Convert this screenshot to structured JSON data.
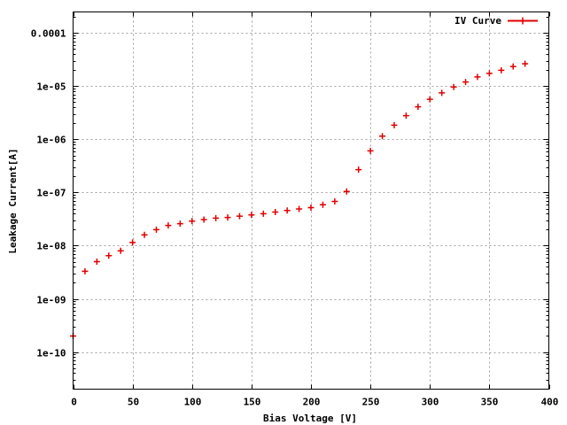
{
  "chart_data": {
    "type": "scatter",
    "xlabel": "Bias Voltage [V]",
    "ylabel": "Leakage Current[A]",
    "xlim": [
      0,
      400
    ],
    "ylim": [
      2e-11,
      0.00025
    ],
    "y_scale": "log",
    "x_ticks": [
      0,
      50,
      100,
      150,
      200,
      250,
      300,
      350,
      400
    ],
    "x_tick_labels": [
      "0",
      "50",
      "100",
      "150",
      "200",
      "250",
      "300",
      "350",
      "400"
    ],
    "y_ticks": [
      1e-10,
      1e-09,
      1e-08,
      1e-07,
      1e-06,
      1e-05,
      0.0001
    ],
    "y_tick_labels": [
      "1e-10",
      "1e-09",
      "1e-08",
      "1e-07",
      "1e-06",
      "1e-05",
      "0.0001"
    ],
    "grid": true,
    "legend_position": "top-right",
    "series": [
      {
        "name": "IV Curve",
        "color": "#e00000",
        "x": [
          0,
          10,
          20,
          30,
          40,
          50,
          60,
          70,
          80,
          90,
          100,
          110,
          120,
          130,
          140,
          150,
          160,
          170,
          180,
          190,
          200,
          210,
          220,
          230,
          240,
          250,
          260,
          270,
          280,
          290,
          300,
          310,
          320,
          330,
          340,
          350,
          360,
          370,
          380
        ],
        "y": [
          2e-10,
          3.3e-09,
          5e-09,
          6.5e-09,
          8e-09,
          1.15e-08,
          1.6e-08,
          2e-08,
          2.4e-08,
          2.6e-08,
          2.9e-08,
          3.1e-08,
          3.3e-08,
          3.4e-08,
          3.6e-08,
          3.8e-08,
          4e-08,
          4.3e-08,
          4.6e-08,
          4.9e-08,
          5.2e-08,
          5.9e-08,
          6.8e-08,
          1.05e-07,
          2.7e-07,
          6.1e-07,
          1.15e-06,
          1.85e-06,
          2.8e-06,
          4.1e-06,
          5.7e-06,
          7.5e-06,
          9.7e-06,
          1.2e-05,
          1.5e-05,
          1.75e-05,
          2e-05,
          2.35e-05,
          2.65e-05
        ]
      }
    ]
  }
}
